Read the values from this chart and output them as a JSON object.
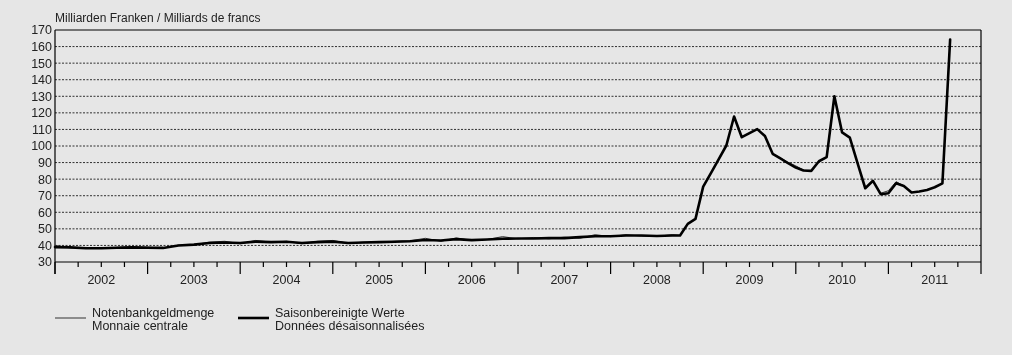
{
  "chart_data": {
    "type": "line",
    "ylabel": "Milliarden Franken / Milliards de francs",
    "xlim": [
      "2002-01",
      "2012-01"
    ],
    "ylim": [
      30,
      170
    ],
    "yticks": [
      30,
      40,
      50,
      60,
      70,
      80,
      90,
      100,
      110,
      120,
      130,
      140,
      150,
      160,
      170
    ],
    "xticks": [
      {
        "value": "2002-01",
        "label": null
      },
      {
        "value": "2002-04",
        "label": null
      },
      {
        "value": "2002-07",
        "label": "2002"
      },
      {
        "value": "2002-10",
        "label": null
      },
      {
        "value": "2003-01",
        "label": null
      },
      {
        "value": "2003-04",
        "label": null
      },
      {
        "value": "2003-07",
        "label": "2003"
      },
      {
        "value": "2003-10",
        "label": null
      },
      {
        "value": "2004-01",
        "label": null
      },
      {
        "value": "2004-04",
        "label": null
      },
      {
        "value": "2004-07",
        "label": "2004"
      },
      {
        "value": "2004-10",
        "label": null
      },
      {
        "value": "2005-01",
        "label": null
      },
      {
        "value": "2005-04",
        "label": null
      },
      {
        "value": "2005-07",
        "label": "2005"
      },
      {
        "value": "2005-10",
        "label": null
      },
      {
        "value": "2006-01",
        "label": null
      },
      {
        "value": "2006-04",
        "label": null
      },
      {
        "value": "2006-07",
        "label": "2006"
      },
      {
        "value": "2006-10",
        "label": null
      },
      {
        "value": "2007-01",
        "label": null
      },
      {
        "value": "2007-04",
        "label": null
      },
      {
        "value": "2007-07",
        "label": "2007"
      },
      {
        "value": "2007-10",
        "label": null
      },
      {
        "value": "2008-01",
        "label": null
      },
      {
        "value": "2008-04",
        "label": null
      },
      {
        "value": "2008-07",
        "label": "2008"
      },
      {
        "value": "2008-10",
        "label": null
      },
      {
        "value": "2009-01",
        "label": null
      },
      {
        "value": "2009-04",
        "label": null
      },
      {
        "value": "2009-07",
        "label": "2009"
      },
      {
        "value": "2009-10",
        "label": null
      },
      {
        "value": "2010-01",
        "label": null
      },
      {
        "value": "2010-04",
        "label": null
      },
      {
        "value": "2010-07",
        "label": "2010"
      },
      {
        "value": "2010-10",
        "label": null
      },
      {
        "value": "2011-01",
        "label": null
      },
      {
        "value": "2011-04",
        "label": null
      },
      {
        "value": "2011-07",
        "label": "2011"
      },
      {
        "value": "2011-10",
        "label": null
      },
      {
        "value": "2012-01",
        "label": null
      }
    ],
    "grid": "y",
    "legend": "bottom left",
    "line_style": "solid",
    "series": [
      {
        "name": "Notenbankgeldmenge\nMonnaie centrale",
        "color": "#333333",
        "x": [
          "2002-01",
          "2002-03",
          "2002-05",
          "2002-07",
          "2002-09",
          "2002-11",
          "2003-01",
          "2003-03",
          "2003-05",
          "2003-07",
          "2003-09",
          "2003-11",
          "2004-01",
          "2004-03",
          "2004-05",
          "2004-07",
          "2004-09",
          "2004-11",
          "2005-01",
          "2005-03",
          "2005-05",
          "2005-07",
          "2005-09",
          "2005-11",
          "2006-01",
          "2006-03",
          "2006-05",
          "2006-07",
          "2006-09",
          "2006-11",
          "2007-01",
          "2007-03",
          "2007-05",
          "2007-07",
          "2007-09",
          "2007-11",
          "2008-01",
          "2008-03",
          "2008-05",
          "2008-07",
          "2008-09",
          "2008-10",
          "2008-11",
          "2008-12",
          "2009-01",
          "2009-02",
          "2009-03",
          "2009-04",
          "2009-05",
          "2009-06",
          "2009-07",
          "2009-08",
          "2009-09",
          "2009-10",
          "2009-11",
          "2009-12",
          "2010-01",
          "2010-02",
          "2010-03",
          "2010-04",
          "2010-05",
          "2010-06",
          "2010-07",
          "2010-08",
          "2010-09",
          "2010-10",
          "2010-11",
          "2010-12",
          "2011-01",
          "2011-02",
          "2011-03",
          "2011-04",
          "2011-05",
          "2011-06",
          "2011-07",
          "2011-08",
          "2011-09"
        ],
        "values": [
          40,
          38.5,
          38.8,
          38.2,
          38.8,
          39.2,
          39,
          38.3,
          40.2,
          40.3,
          42,
          42.5,
          41,
          43,
          42,
          42.5,
          41,
          42.5,
          43,
          41.3,
          42,
          41.8,
          42.5,
          42.8,
          44.3,
          42.5,
          44.5,
          43,
          43.6,
          45.3,
          44,
          44.8,
          44,
          45,
          44.3,
          46.5,
          45.3,
          46.5,
          45.6,
          45.5,
          46.5,
          46,
          53,
          56,
          75.5,
          83.6,
          92,
          100.3,
          117.8,
          105.3,
          107.8,
          110.2,
          106,
          95.3,
          92.8,
          90.2,
          88,
          85.5,
          85.2,
          90.8,
          93.3,
          129.9,
          108.2,
          105.1,
          89.6,
          74.5,
          79,
          71.5,
          73,
          78.5,
          75.9,
          71.9,
          72.5,
          73.5,
          75.1,
          77.5,
          164.2
        ]
      },
      {
        "name": "Saisonbereinigte Werte\nDonnées désaisonnalisées",
        "color": "#000000",
        "x": [
          "2002-01",
          "2002-03",
          "2002-05",
          "2002-07",
          "2002-09",
          "2002-11",
          "2003-01",
          "2003-03",
          "2003-05",
          "2003-07",
          "2003-09",
          "2003-11",
          "2004-01",
          "2004-03",
          "2004-05",
          "2004-07",
          "2004-09",
          "2004-11",
          "2005-01",
          "2005-03",
          "2005-05",
          "2005-07",
          "2005-09",
          "2005-11",
          "2006-01",
          "2006-03",
          "2006-05",
          "2006-07",
          "2006-09",
          "2006-11",
          "2007-01",
          "2007-03",
          "2007-05",
          "2007-07",
          "2007-09",
          "2007-11",
          "2008-01",
          "2008-03",
          "2008-05",
          "2008-07",
          "2008-09",
          "2008-10",
          "2008-11",
          "2008-12",
          "2009-01",
          "2009-02",
          "2009-03",
          "2009-04",
          "2009-05",
          "2009-06",
          "2009-07",
          "2009-08",
          "2009-09",
          "2009-10",
          "2009-11",
          "2009-12",
          "2010-01",
          "2010-02",
          "2010-03",
          "2010-04",
          "2010-05",
          "2010-06",
          "2010-07",
          "2010-08",
          "2010-09",
          "2010-10",
          "2010-11",
          "2010-12",
          "2011-01",
          "2011-02",
          "2011-03",
          "2011-04",
          "2011-05",
          "2011-06",
          "2011-07",
          "2011-08",
          "2011-09"
        ],
        "values": [
          39,
          38.8,
          38.3,
          38.3,
          38.6,
          38.8,
          38.6,
          38.5,
          40,
          40.5,
          41.5,
          41.8,
          41.5,
          42.3,
          42,
          42.2,
          41.5,
          42,
          42.3,
          41.5,
          41.8,
          42,
          42.2,
          42.5,
          43.3,
          43,
          43.8,
          43.2,
          43.6,
          44,
          44.2,
          44.2,
          44.4,
          44.4,
          45,
          45.5,
          45.5,
          46,
          46,
          45.7,
          46,
          46,
          53,
          56,
          75.5,
          83.6,
          92,
          100.3,
          117.8,
          105.3,
          107.8,
          110.2,
          106,
          95.3,
          92.5,
          89.6,
          87,
          85.2,
          85,
          90.8,
          93.3,
          130,
          108.2,
          105.1,
          89.6,
          74.5,
          79,
          70.9,
          71.5,
          77.5,
          75.9,
          71.9,
          72.5,
          73.5,
          75.1,
          77.5,
          164.2
        ]
      }
    ]
  }
}
